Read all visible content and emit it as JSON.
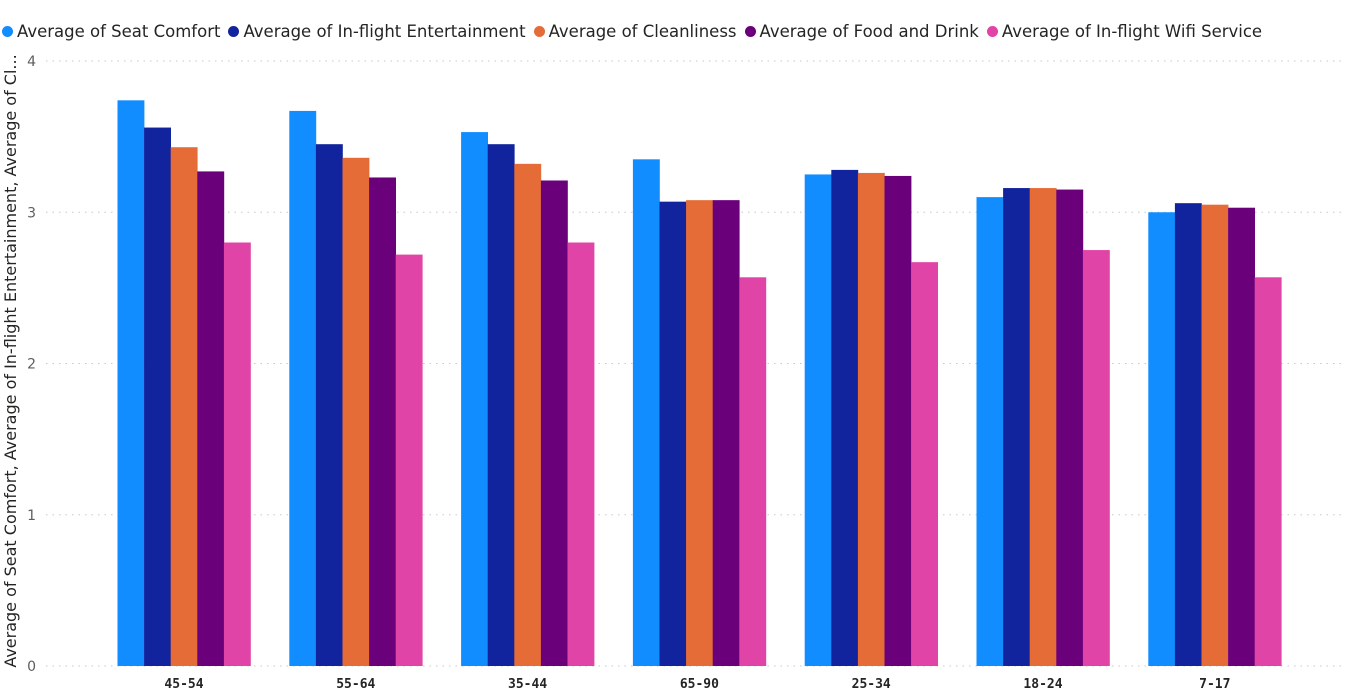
{
  "chart_data": {
    "type": "bar",
    "title": "",
    "xlabel": "",
    "ylabel": "Average of Seat Comfort, Average of In-flight Entertainment, Average of Cl...",
    "ylim": [
      0,
      4
    ],
    "yticks": [
      "0",
      "1",
      "2",
      "3",
      "4"
    ],
    "grid": true,
    "legend_position": "top-left",
    "categories": [
      "45-54",
      "55-64",
      "35-44",
      "65-90",
      "25-34",
      "18-24",
      "7-17"
    ],
    "series": [
      {
        "name": "Average of Seat Comfort",
        "color": "#118DFF",
        "values": [
          3.74,
          3.67,
          3.53,
          3.35,
          3.25,
          3.1,
          3.0
        ]
      },
      {
        "name": "Average of In-flight Entertainment",
        "color": "#12239E",
        "values": [
          3.56,
          3.45,
          3.45,
          3.07,
          3.28,
          3.16,
          3.06
        ]
      },
      {
        "name": "Average of Cleanliness",
        "color": "#E66C37",
        "values": [
          3.43,
          3.36,
          3.32,
          3.08,
          3.26,
          3.16,
          3.05
        ]
      },
      {
        "name": "Average of Food and Drink",
        "color": "#6B007B",
        "values": [
          3.27,
          3.23,
          3.21,
          3.08,
          3.24,
          3.15,
          3.03
        ]
      },
      {
        "name": "Average of In-flight Wifi Service",
        "color": "#E044A7",
        "values": [
          2.8,
          2.72,
          2.8,
          2.57,
          2.67,
          2.75,
          2.57
        ]
      }
    ]
  }
}
